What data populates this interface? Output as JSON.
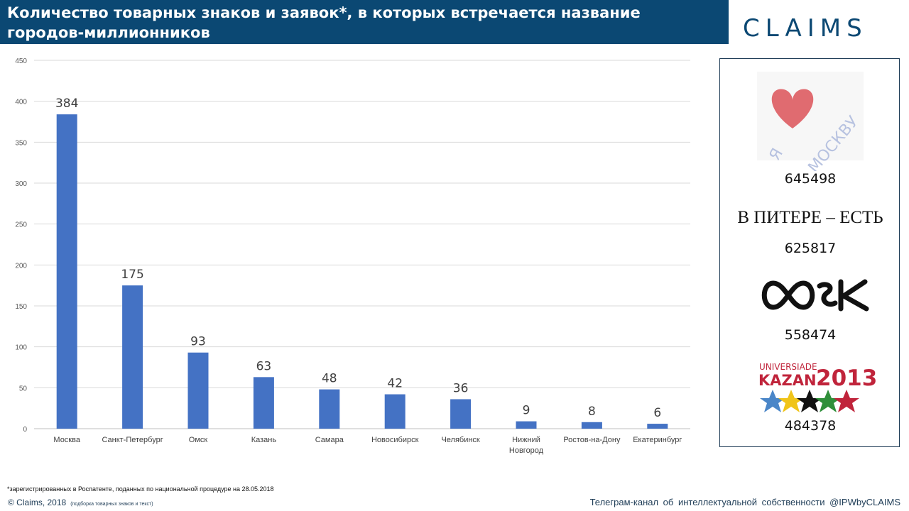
{
  "header": {
    "title": "Количество товарных знаков и заявок*, в которых встречается название городов-миллионников",
    "logo": "CLAIMS"
  },
  "chart_data": {
    "type": "bar",
    "categories": [
      "Москва",
      "Санкт-Петербург",
      "Омск",
      "Казань",
      "Самара",
      "Новосибирск",
      "Челябинск",
      "Нижний Новгород",
      "Ростов-на-Дону",
      "Екатеринбург"
    ],
    "values": [
      384,
      175,
      93,
      63,
      48,
      42,
      36,
      9,
      8,
      6
    ],
    "ylim": [
      0,
      450
    ],
    "yticks": [
      0,
      50,
      100,
      150,
      200,
      250,
      300,
      350,
      400,
      450
    ],
    "grid": true,
    "data_labels": true,
    "bar_color": "#4472c4"
  },
  "trademarks": {
    "items": [
      {
        "mark_text": "Я ❤ МОСКВУ",
        "number": "645498"
      },
      {
        "mark_text": "В ПИТЕРЕ – ЕСТЬ",
        "number": "625817"
      },
      {
        "mark_text": "ОМСК",
        "number": "558474"
      },
      {
        "mark_text": "UNIVERSIADE KAZAN 2013",
        "number": "484378"
      }
    ]
  },
  "footer": {
    "footnote": "*зарегистрированных в Роспатенте, поданных по национальной процедуре на 28.05.2018",
    "copyright": "© Claims, 2018",
    "copyright_note": "(подборка товарных знаков и текст)",
    "telegram": "Телеграм-канал об интеллектуальной собственности @IPWbyCLAIMS"
  },
  "colors": {
    "header_bg": "#0b4873",
    "accent": "#0b4873",
    "bar": "#4472c4"
  }
}
